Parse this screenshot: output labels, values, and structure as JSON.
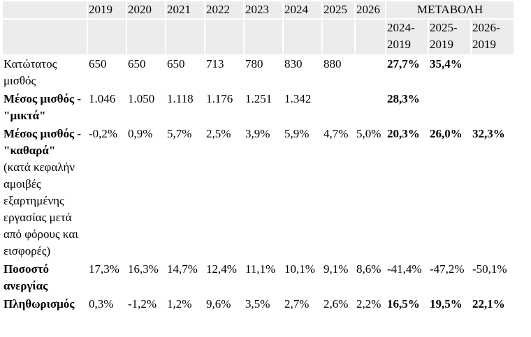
{
  "header": {
    "years": [
      "2019",
      "2020",
      "2021",
      "2022",
      "2023",
      "2024",
      "2025",
      "2026"
    ],
    "change_title": "ΜΕΤΑΒΟΛΗ",
    "change_periods": [
      "2024-2019",
      "2025-2019",
      "2026-2019"
    ]
  },
  "rows": [
    {
      "label": "Κατώτατος μισθός",
      "values": [
        "650",
        "650",
        "650",
        "713",
        "780",
        "830",
        "880",
        ""
      ],
      "changes": [
        "27,7%",
        "35,4%",
        ""
      ]
    },
    {
      "label": "Μέσος μισθός - \"μικτά\"",
      "values": [
        "1.046",
        "1.050",
        "1.118",
        "1.176",
        "1.251",
        "1.342",
        "",
        ""
      ],
      "changes": [
        "28,3%",
        "",
        ""
      ]
    },
    {
      "label": "Μέσος μισθός - \"καθαρά\"",
      "note": "(κατά κεφαλήν αμοιβές εξαρτημένης εργασίας μετά από φόρους και εισφορές)",
      "values": [
        "-0,2%",
        "0,9%",
        "5,7%",
        "2,5%",
        "3,9%",
        "5,9%",
        "4,7%",
        "5,0%"
      ],
      "changes": [
        "20,3%",
        "26,0%",
        "32,3%"
      ]
    },
    {
      "label": "Ποσοστό ανεργίας",
      "values": [
        "17,3%",
        "16,3%",
        "14,7%",
        "12,4%",
        "11,1%",
        "10,1%",
        "9,1%",
        "8,6%"
      ],
      "changes": [
        "-41,4%",
        "-47,2%",
        "-50,1%"
      ]
    },
    {
      "label": "Πληθωρισμός",
      "values": [
        "0,3%",
        "-1,2%",
        "1,2%",
        "9,6%",
        "3,5%",
        "2,7%",
        "2,6%",
        "2,2%"
      ],
      "changes": [
        "16,5%",
        "19,5%",
        "22,1%"
      ]
    }
  ]
}
